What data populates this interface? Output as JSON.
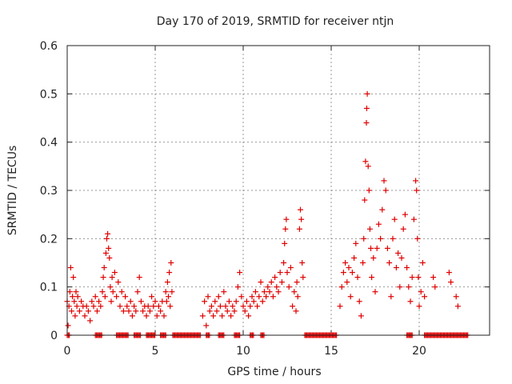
{
  "chart_data": {
    "type": "scatter",
    "title": "Day 170 of 2019, SRMTID for receiver ntjn",
    "xlabel": "GPS time / hours",
    "ylabel": "SRMTID / TECUs",
    "xlim": [
      0,
      24
    ],
    "ylim": [
      0,
      0.6
    ],
    "xticks": [
      0,
      5,
      10,
      15,
      20
    ],
    "xtick_labels": [
      "0",
      "5",
      "10",
      "15",
      "20"
    ],
    "yticks": [
      0,
      0.1,
      0.2,
      0.3,
      0.4,
      0.5,
      0.6
    ],
    "ytick_labels": [
      "0",
      "0.1",
      "0.2",
      "0.3",
      "0.4",
      "0.5",
      "0.6"
    ],
    "grid": true,
    "marker": "+",
    "color": "#e00000",
    "series": [
      {
        "name": "SRMTID",
        "points": [
          [
            0.0,
            0.07
          ],
          [
            0.05,
            0.02
          ],
          [
            0.1,
            0.06
          ],
          [
            0.15,
            0.09
          ],
          [
            0.2,
            0.14
          ],
          [
            0.25,
            0.05
          ],
          [
            0.3,
            0.08
          ],
          [
            0.35,
            0.12
          ],
          [
            0.4,
            0.07
          ],
          [
            0.45,
            0.04
          ],
          [
            0.5,
            0.09
          ],
          [
            0.55,
            0.06
          ],
          [
            0.6,
            0.08
          ],
          [
            0.7,
            0.05
          ],
          [
            0.8,
            0.07
          ],
          [
            0.9,
            0.06
          ],
          [
            1.0,
            0.04
          ],
          [
            1.1,
            0.06
          ],
          [
            1.2,
            0.05
          ],
          [
            1.3,
            0.03
          ],
          [
            1.4,
            0.07
          ],
          [
            1.5,
            0.06
          ],
          [
            1.6,
            0.08
          ],
          [
            1.7,
            0.05
          ],
          [
            1.8,
            0.07
          ],
          [
            1.9,
            0.06
          ],
          [
            2.0,
            0.09
          ],
          [
            2.05,
            0.12
          ],
          [
            2.1,
            0.14
          ],
          [
            2.15,
            0.08
          ],
          [
            2.2,
            0.17
          ],
          [
            2.25,
            0.2
          ],
          [
            2.3,
            0.21
          ],
          [
            2.35,
            0.18
          ],
          [
            2.4,
            0.16
          ],
          [
            2.45,
            0.1
          ],
          [
            2.5,
            0.07
          ],
          [
            2.55,
            0.12
          ],
          [
            2.6,
            0.09
          ],
          [
            2.7,
            0.13
          ],
          [
            2.8,
            0.08
          ],
          [
            2.9,
            0.11
          ],
          [
            3.0,
            0.06
          ],
          [
            3.1,
            0.09
          ],
          [
            3.2,
            0.05
          ],
          [
            3.3,
            0.08
          ],
          [
            3.4,
            0.06
          ],
          [
            3.5,
            0.05
          ],
          [
            3.6,
            0.07
          ],
          [
            3.7,
            0.04
          ],
          [
            3.8,
            0.06
          ],
          [
            3.9,
            0.05
          ],
          [
            4.0,
            0.09
          ],
          [
            4.1,
            0.12
          ],
          [
            4.2,
            0.07
          ],
          [
            4.3,
            0.05
          ],
          [
            4.4,
            0.06
          ],
          [
            4.5,
            0.04
          ],
          [
            4.6,
            0.06
          ],
          [
            4.7,
            0.05
          ],
          [
            4.8,
            0.08
          ],
          [
            4.9,
            0.06
          ],
          [
            5.0,
            0.07
          ],
          [
            5.1,
            0.04
          ],
          [
            5.2,
            0.06
          ],
          [
            5.3,
            0.05
          ],
          [
            5.4,
            0.07
          ],
          [
            5.5,
            0.04
          ],
          [
            5.6,
            0.09
          ],
          [
            5.65,
            0.07
          ],
          [
            5.7,
            0.11
          ],
          [
            5.75,
            0.08
          ],
          [
            5.8,
            0.13
          ],
          [
            5.85,
            0.06
          ],
          [
            5.9,
            0.15
          ],
          [
            5.95,
            0.09
          ],
          [
            7.7,
            0.04
          ],
          [
            7.8,
            0.07
          ],
          [
            7.9,
            0.02
          ],
          [
            8.0,
            0.08
          ],
          [
            8.1,
            0.05
          ],
          [
            8.2,
            0.06
          ],
          [
            8.3,
            0.04
          ],
          [
            8.4,
            0.07
          ],
          [
            8.5,
            0.05
          ],
          [
            8.6,
            0.08
          ],
          [
            8.7,
            0.06
          ],
          [
            8.8,
            0.04
          ],
          [
            8.9,
            0.09
          ],
          [
            9.0,
            0.06
          ],
          [
            9.1,
            0.05
          ],
          [
            9.2,
            0.07
          ],
          [
            9.3,
            0.04
          ],
          [
            9.4,
            0.06
          ],
          [
            9.5,
            0.05
          ],
          [
            9.6,
            0.07
          ],
          [
            9.7,
            0.1
          ],
          [
            9.8,
            0.13
          ],
          [
            9.9,
            0.08
          ],
          [
            10.0,
            0.06
          ],
          [
            10.1,
            0.05
          ],
          [
            10.2,
            0.07
          ],
          [
            10.3,
            0.04
          ],
          [
            10.4,
            0.06
          ],
          [
            10.5,
            0.08
          ],
          [
            10.6,
            0.07
          ],
          [
            10.7,
            0.09
          ],
          [
            10.8,
            0.06
          ],
          [
            10.9,
            0.08
          ],
          [
            11.0,
            0.11
          ],
          [
            11.1,
            0.07
          ],
          [
            11.2,
            0.09
          ],
          [
            11.3,
            0.08
          ],
          [
            11.4,
            0.1
          ],
          [
            11.5,
            0.09
          ],
          [
            11.6,
            0.11
          ],
          [
            11.7,
            0.08
          ],
          [
            11.8,
            0.12
          ],
          [
            11.9,
            0.1
          ],
          [
            12.0,
            0.09
          ],
          [
            12.1,
            0.13
          ],
          [
            12.2,
            0.11
          ],
          [
            12.3,
            0.15
          ],
          [
            12.35,
            0.19
          ],
          [
            12.4,
            0.22
          ],
          [
            12.45,
            0.24
          ],
          [
            12.5,
            0.13
          ],
          [
            12.6,
            0.1
          ],
          [
            12.7,
            0.14
          ],
          [
            12.8,
            0.06
          ],
          [
            12.9,
            0.09
          ],
          [
            13.0,
            0.05
          ],
          [
            13.05,
            0.11
          ],
          [
            13.1,
            0.08
          ],
          [
            13.2,
            0.22
          ],
          [
            13.25,
            0.26
          ],
          [
            13.3,
            0.24
          ],
          [
            13.35,
            0.15
          ],
          [
            13.4,
            0.12
          ],
          [
            15.5,
            0.06
          ],
          [
            15.6,
            0.1
          ],
          [
            15.7,
            0.13
          ],
          [
            15.8,
            0.15
          ],
          [
            15.9,
            0.11
          ],
          [
            16.0,
            0.14
          ],
          [
            16.1,
            0.08
          ],
          [
            16.2,
            0.13
          ],
          [
            16.3,
            0.16
          ],
          [
            16.4,
            0.19
          ],
          [
            16.5,
            0.12
          ],
          [
            16.6,
            0.07
          ],
          [
            16.7,
            0.04
          ],
          [
            16.8,
            0.15
          ],
          [
            16.85,
            0.2
          ],
          [
            16.9,
            0.28
          ],
          [
            16.95,
            0.36
          ],
          [
            17.0,
            0.44
          ],
          [
            17.02,
            0.47
          ],
          [
            17.05,
            0.5
          ],
          [
            17.1,
            0.35
          ],
          [
            17.15,
            0.3
          ],
          [
            17.2,
            0.22
          ],
          [
            17.25,
            0.18
          ],
          [
            17.3,
            0.12
          ],
          [
            17.4,
            0.16
          ],
          [
            17.5,
            0.09
          ],
          [
            17.6,
            0.18
          ],
          [
            17.7,
            0.23
          ],
          [
            17.8,
            0.2
          ],
          [
            17.9,
            0.26
          ],
          [
            18.0,
            0.32
          ],
          [
            18.1,
            0.3
          ],
          [
            18.2,
            0.18
          ],
          [
            18.3,
            0.15
          ],
          [
            18.4,
            0.08
          ],
          [
            18.5,
            0.2
          ],
          [
            18.6,
            0.24
          ],
          [
            18.7,
            0.14
          ],
          [
            18.8,
            0.17
          ],
          [
            18.9,
            0.1
          ],
          [
            19.0,
            0.16
          ],
          [
            19.1,
            0.22
          ],
          [
            19.2,
            0.25
          ],
          [
            19.3,
            0.14
          ],
          [
            19.4,
            0.1
          ],
          [
            19.5,
            0.07
          ],
          [
            19.6,
            0.12
          ],
          [
            19.7,
            0.24
          ],
          [
            19.8,
            0.32
          ],
          [
            19.85,
            0.3
          ],
          [
            19.9,
            0.2
          ],
          [
            19.95,
            0.12
          ],
          [
            20.0,
            0.06
          ],
          [
            20.1,
            0.09
          ],
          [
            20.2,
            0.15
          ],
          [
            20.3,
            0.08
          ],
          [
            20.8,
            0.12
          ],
          [
            20.9,
            0.1
          ],
          [
            21.7,
            0.13
          ],
          [
            21.8,
            0.11
          ],
          [
            22.1,
            0.08
          ],
          [
            22.2,
            0.06
          ]
        ]
      }
    ],
    "zero_segments_hours": [
      [
        0.0,
        0.15
      ],
      [
        1.6,
        2.0
      ],
      [
        2.8,
        3.5
      ],
      [
        3.8,
        4.2
      ],
      [
        4.5,
        5.0
      ],
      [
        5.3,
        5.6
      ],
      [
        6.0,
        7.6
      ],
      [
        7.9,
        8.1
      ],
      [
        8.6,
        8.9
      ],
      [
        9.5,
        9.8
      ],
      [
        10.4,
        10.6
      ],
      [
        11.0,
        11.2
      ],
      [
        13.5,
        15.3
      ],
      [
        19.3,
        19.6
      ],
      [
        20.3,
        22.8
      ]
    ]
  }
}
